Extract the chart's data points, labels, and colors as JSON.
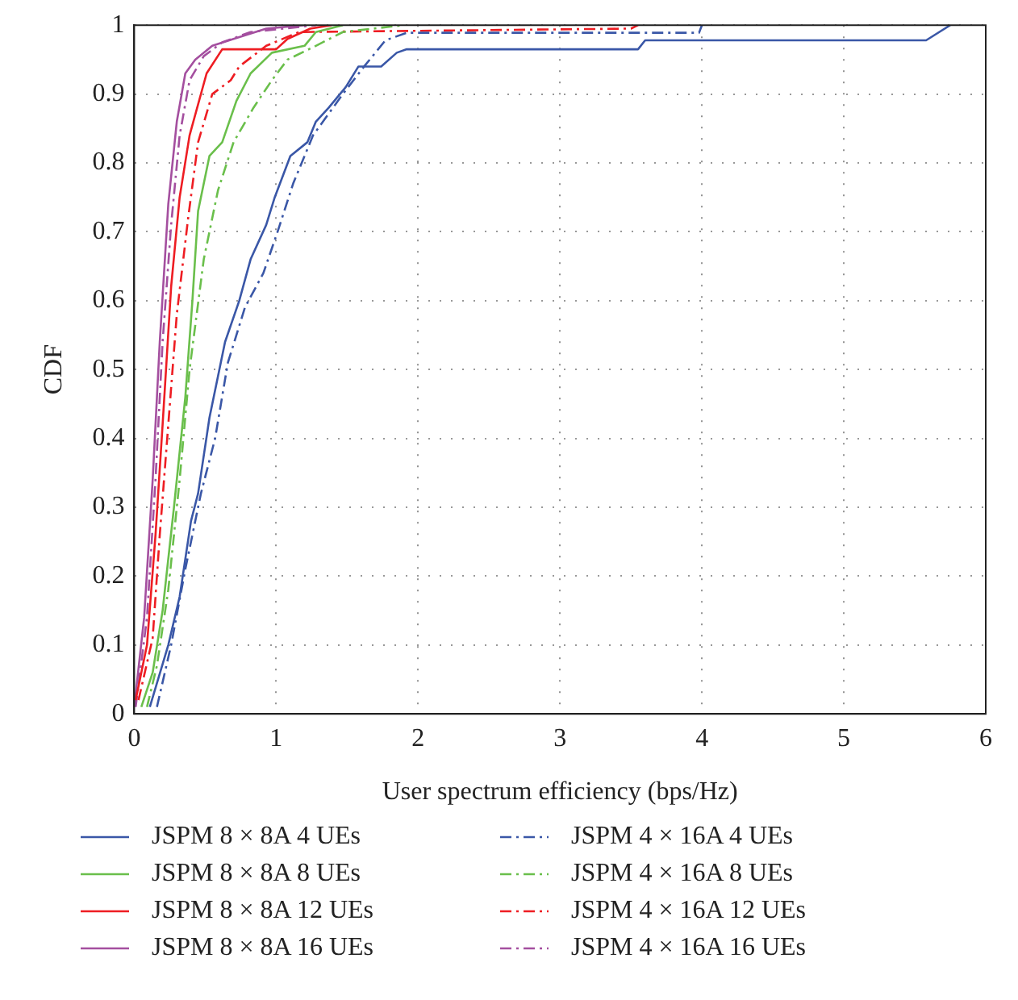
{
  "chart_data": {
    "type": "line",
    "xlabel": "User spectrum efficiency (bps/Hz)",
    "ylabel": "CDF",
    "xlim": [
      0,
      6
    ],
    "ylim": [
      0,
      1
    ],
    "xticks": [
      0,
      1,
      2,
      3,
      4,
      5,
      6
    ],
    "yticks": [
      0,
      0.1,
      0.2,
      0.3,
      0.4,
      0.5,
      0.6,
      0.7,
      0.8,
      0.9,
      1
    ],
    "grid": true,
    "legend": "bottom",
    "marker": "none",
    "series": [
      {
        "name": "JSPM 8 × 8A 4 UEs",
        "color": "#3a57a7",
        "line_style": "solid",
        "x": [
          0.11,
          0.24,
          0.32,
          0.4,
          0.45,
          0.53,
          0.64,
          0.74,
          0.82,
          0.93,
          0.99,
          1.1,
          1.22,
          1.28,
          1.37,
          1.49,
          1.58,
          1.74,
          1.85,
          1.92,
          3.55,
          3.6,
          5.58,
          5.75
        ],
        "values": [
          0.01,
          0.1,
          0.17,
          0.28,
          0.32,
          0.43,
          0.54,
          0.6,
          0.66,
          0.71,
          0.75,
          0.81,
          0.83,
          0.86,
          0.88,
          0.91,
          0.94,
          0.94,
          0.96,
          0.965,
          0.965,
          0.978,
          0.978,
          1
        ]
      },
      {
        "name": "JSPM 8 × 8A 8 UEs",
        "color": "#6abf4b",
        "line_style": "solid",
        "x": [
          0.05,
          0.13,
          0.2,
          0.28,
          0.36,
          0.41,
          0.45,
          0.53,
          0.62,
          0.72,
          0.82,
          0.97,
          1.2,
          1.28,
          1.47
        ],
        "values": [
          0.01,
          0.06,
          0.15,
          0.3,
          0.46,
          0.6,
          0.73,
          0.81,
          0.83,
          0.89,
          0.93,
          0.96,
          0.97,
          0.99,
          1
        ]
      },
      {
        "name": "JSPM 8 × 8A 12 UEs",
        "color": "#ee1d23",
        "line_style": "solid",
        "x": [
          0.01,
          0.09,
          0.15,
          0.2,
          0.26,
          0.32,
          0.39,
          0.51,
          0.62,
          1.0,
          1.08,
          1.24,
          1.39
        ],
        "values": [
          0.02,
          0.1,
          0.26,
          0.42,
          0.62,
          0.75,
          0.84,
          0.93,
          0.965,
          0.965,
          0.98,
          0.995,
          1
        ]
      },
      {
        "name": "JSPM 8 × 8A 16 UEs",
        "color": "#a44f9f",
        "line_style": "solid",
        "x": [
          0.0,
          0.07,
          0.13,
          0.18,
          0.24,
          0.3,
          0.36,
          0.43,
          0.55,
          0.7,
          0.93,
          1.2
        ],
        "values": [
          0.01,
          0.14,
          0.34,
          0.54,
          0.74,
          0.86,
          0.93,
          0.95,
          0.97,
          0.98,
          0.995,
          1
        ]
      },
      {
        "name": "JSPM 4 × 16A 4 UEs",
        "color": "#3a57a7",
        "line_style": "dashed",
        "x": [
          0.16,
          0.26,
          0.36,
          0.47,
          0.57,
          0.66,
          0.78,
          0.91,
          1.01,
          1.12,
          1.26,
          1.33,
          1.47,
          1.62,
          1.77,
          1.92,
          3.98,
          4.0
        ],
        "values": [
          0.01,
          0.1,
          0.21,
          0.32,
          0.4,
          0.51,
          0.59,
          0.64,
          0.7,
          0.77,
          0.84,
          0.86,
          0.9,
          0.94,
          0.978,
          0.989,
          0.989,
          1
        ]
      },
      {
        "name": "JSPM 4 × 16A 8 UEs",
        "color": "#6abf4b",
        "line_style": "dashed",
        "x": [
          0.09,
          0.16,
          0.24,
          0.32,
          0.39,
          0.49,
          0.59,
          0.7,
          0.84,
          0.97,
          1.08,
          1.28,
          1.47,
          1.9
        ],
        "values": [
          0.01,
          0.07,
          0.18,
          0.34,
          0.5,
          0.66,
          0.76,
          0.83,
          0.88,
          0.92,
          0.95,
          0.97,
          0.99,
          1
        ]
      },
      {
        "name": "JSPM 4 × 16A 12 UEs",
        "color": "#ee1d23",
        "line_style": "dashed",
        "x": [
          0.03,
          0.13,
          0.18,
          0.24,
          0.3,
          0.38,
          0.45,
          0.55,
          0.68,
          0.74,
          0.93,
          1.16,
          3.5,
          3.55
        ],
        "values": [
          0.02,
          0.11,
          0.26,
          0.42,
          0.58,
          0.72,
          0.83,
          0.9,
          0.92,
          0.94,
          0.97,
          0.99,
          0.995,
          1
        ]
      },
      {
        "name": "JSPM 4 × 16A 16 UEs",
        "color": "#a44f9f",
        "line_style": "dashed",
        "x": [
          0.01,
          0.09,
          0.15,
          0.2,
          0.26,
          0.32,
          0.39,
          0.49,
          0.62,
          0.82,
          1.05,
          1.28
        ],
        "values": [
          0.01,
          0.14,
          0.34,
          0.54,
          0.71,
          0.84,
          0.92,
          0.955,
          0.975,
          0.99,
          0.995,
          1
        ]
      }
    ]
  }
}
